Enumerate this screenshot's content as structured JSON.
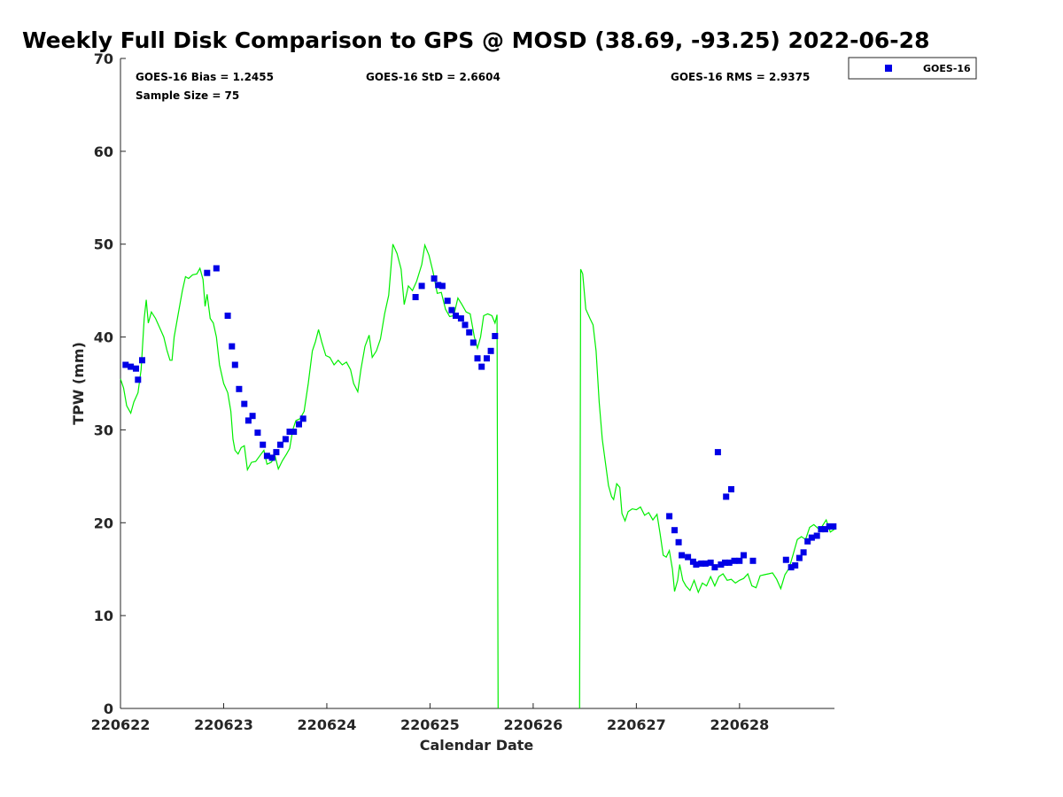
{
  "chart_data": {
    "type": "scatter",
    "title": "Weekly Full Disk Comparison to GPS @ MOSD (38.69, -93.25) 2022-06-28",
    "xlabel": "Calendar Date",
    "ylabel": "TPW (mm)",
    "xlim": [
      0,
      6.92
    ],
    "ylim": [
      0,
      70
    ],
    "x_unit": "days since 220622",
    "x_ticks": [
      {
        "value": 0,
        "label": "220622"
      },
      {
        "value": 1,
        "label": "220623"
      },
      {
        "value": 2,
        "label": "220624"
      },
      {
        "value": 3,
        "label": "220625"
      },
      {
        "value": 4,
        "label": "220626"
      },
      {
        "value": 5,
        "label": "220627"
      },
      {
        "value": 6,
        "label": "220628"
      }
    ],
    "y_ticks": [
      {
        "value": 0,
        "label": "0"
      },
      {
        "value": 10,
        "label": "10"
      },
      {
        "value": 20,
        "label": "20"
      },
      {
        "value": 30,
        "label": "30"
      },
      {
        "value": 40,
        "label": "40"
      },
      {
        "value": 50,
        "label": "50"
      },
      {
        "value": 60,
        "label": "60"
      },
      {
        "value": 70,
        "label": "70"
      }
    ],
    "stats": {
      "bias": "GOES-16 Bias = 1.2455",
      "std": "GOES-16 StD = 2.6604",
      "rms": "GOES-16 RMS = 2.9375",
      "sample_size": "Sample Size = 75"
    },
    "legend": {
      "position": "top-right, outside plot",
      "entries": [
        "GOES-16"
      ]
    },
    "grid": false,
    "series": [
      {
        "name": "GOES-16",
        "kind": "scatter",
        "marker": "square",
        "color": "#0000e6",
        "points": [
          [
            0.05,
            37.0
          ],
          [
            0.1,
            36.8
          ],
          [
            0.15,
            36.6
          ],
          [
            0.17,
            35.4
          ],
          [
            0.21,
            37.5
          ],
          [
            0.84,
            46.9
          ],
          [
            0.93,
            47.4
          ],
          [
            1.04,
            42.3
          ],
          [
            1.08,
            39.0
          ],
          [
            1.11,
            37.0
          ],
          [
            1.15,
            34.4
          ],
          [
            1.2,
            32.8
          ],
          [
            1.24,
            31.0
          ],
          [
            1.28,
            31.5
          ],
          [
            1.33,
            29.7
          ],
          [
            1.38,
            28.4
          ],
          [
            1.42,
            27.2
          ],
          [
            1.47,
            27.0
          ],
          [
            1.51,
            27.6
          ],
          [
            1.55,
            28.4
          ],
          [
            1.6,
            29.0
          ],
          [
            1.64,
            29.8
          ],
          [
            1.68,
            29.8
          ],
          [
            1.73,
            30.6
          ],
          [
            1.77,
            31.2
          ],
          [
            2.86,
            44.3
          ],
          [
            2.92,
            45.5
          ],
          [
            3.04,
            46.3
          ],
          [
            3.08,
            45.6
          ],
          [
            3.12,
            45.5
          ],
          [
            3.17,
            43.9
          ],
          [
            3.21,
            42.9
          ],
          [
            3.25,
            42.3
          ],
          [
            3.3,
            42.0
          ],
          [
            3.34,
            41.3
          ],
          [
            3.38,
            40.5
          ],
          [
            3.42,
            39.4
          ],
          [
            3.46,
            37.7
          ],
          [
            3.5,
            36.8
          ],
          [
            3.55,
            37.7
          ],
          [
            3.59,
            38.5
          ],
          [
            3.63,
            40.1
          ],
          [
            5.79,
            27.6
          ],
          [
            5.87,
            22.8
          ],
          [
            5.92,
            23.6
          ],
          [
            5.32,
            20.7
          ],
          [
            5.37,
            19.2
          ],
          [
            5.41,
            17.9
          ],
          [
            5.44,
            16.5
          ],
          [
            5.5,
            16.3
          ],
          [
            5.55,
            15.8
          ],
          [
            5.58,
            15.5
          ],
          [
            5.63,
            15.6
          ],
          [
            5.67,
            15.6
          ],
          [
            5.72,
            15.7
          ],
          [
            5.76,
            15.2
          ],
          [
            5.82,
            15.5
          ],
          [
            5.86,
            15.7
          ],
          [
            5.9,
            15.7
          ],
          [
            5.95,
            15.9
          ],
          [
            6.0,
            15.9
          ],
          [
            6.04,
            16.5
          ],
          [
            6.13,
            15.9
          ],
          [
            6.45,
            16.0
          ],
          [
            6.5,
            15.2
          ],
          [
            6.54,
            15.4
          ],
          [
            6.58,
            16.2
          ],
          [
            6.62,
            16.8
          ],
          [
            6.66,
            18.0
          ],
          [
            6.7,
            18.4
          ],
          [
            6.75,
            18.6
          ],
          [
            6.79,
            19.3
          ],
          [
            6.83,
            19.3
          ],
          [
            6.87,
            19.6
          ],
          [
            6.91,
            19.6
          ]
        ]
      },
      {
        "name": "GPS",
        "kind": "line",
        "color": "#00ee00",
        "points": [
          [
            0.0,
            35.5
          ],
          [
            0.03,
            34.5
          ],
          [
            0.06,
            32.6
          ],
          [
            0.1,
            31.8
          ],
          [
            0.13,
            33.0
          ],
          [
            0.17,
            34.0
          ],
          [
            0.2,
            36.5
          ],
          [
            0.23,
            42.0
          ],
          [
            0.25,
            44.0
          ],
          [
            0.27,
            41.5
          ],
          [
            0.3,
            42.7
          ],
          [
            0.34,
            42.0
          ],
          [
            0.38,
            41.0
          ],
          [
            0.42,
            40.0
          ],
          [
            0.45,
            38.6
          ],
          [
            0.48,
            37.5
          ],
          [
            0.5,
            37.5
          ],
          [
            0.52,
            40.0
          ],
          [
            0.56,
            42.5
          ],
          [
            0.6,
            45.0
          ],
          [
            0.63,
            46.5
          ],
          [
            0.66,
            46.3
          ],
          [
            0.7,
            46.7
          ],
          [
            0.74,
            46.8
          ],
          [
            0.77,
            47.4
          ],
          [
            0.8,
            46.2
          ],
          [
            0.82,
            43.3
          ],
          [
            0.84,
            44.6
          ],
          [
            0.87,
            42.0
          ],
          [
            0.9,
            41.5
          ],
          [
            0.93,
            40.0
          ],
          [
            0.96,
            37.0
          ],
          [
            1.0,
            35.0
          ],
          [
            1.04,
            34.0
          ],
          [
            1.07,
            32.0
          ],
          [
            1.09,
            29.0
          ],
          [
            1.11,
            27.8
          ],
          [
            1.14,
            27.4
          ],
          [
            1.17,
            28.1
          ],
          [
            1.2,
            28.3
          ],
          [
            1.23,
            25.7
          ],
          [
            1.27,
            26.5
          ],
          [
            1.31,
            26.6
          ],
          [
            1.35,
            27.2
          ],
          [
            1.39,
            27.8
          ],
          [
            1.42,
            26.3
          ],
          [
            1.46,
            26.5
          ],
          [
            1.5,
            27.1
          ],
          [
            1.53,
            25.8
          ],
          [
            1.57,
            26.7
          ],
          [
            1.61,
            27.4
          ],
          [
            1.64,
            28.0
          ],
          [
            1.67,
            30.0
          ],
          [
            1.7,
            31.0
          ],
          [
            1.74,
            31.2
          ],
          [
            1.78,
            32.0
          ],
          [
            1.82,
            35.0
          ],
          [
            1.86,
            38.5
          ],
          [
            1.89,
            39.5
          ],
          [
            1.92,
            40.8
          ],
          [
            1.95,
            39.5
          ],
          [
            1.99,
            38.0
          ],
          [
            2.03,
            37.8
          ],
          [
            2.07,
            37.0
          ],
          [
            2.11,
            37.5
          ],
          [
            2.15,
            37.0
          ],
          [
            2.19,
            37.3
          ],
          [
            2.23,
            36.5
          ],
          [
            2.26,
            35.0
          ],
          [
            2.3,
            34.1
          ],
          [
            2.33,
            36.5
          ],
          [
            2.37,
            39.0
          ],
          [
            2.41,
            40.2
          ],
          [
            2.44,
            37.8
          ],
          [
            2.48,
            38.5
          ],
          [
            2.52,
            39.8
          ],
          [
            2.56,
            42.5
          ],
          [
            2.6,
            44.5
          ],
          [
            2.64,
            50.0
          ],
          [
            2.68,
            49.0
          ],
          [
            2.72,
            47.3
          ],
          [
            2.75,
            43.5
          ],
          [
            2.79,
            45.5
          ],
          [
            2.83,
            45.0
          ],
          [
            2.87,
            46.0
          ],
          [
            2.92,
            47.8
          ],
          [
            2.95,
            49.9
          ],
          [
            2.99,
            48.8
          ],
          [
            3.03,
            47.0
          ],
          [
            3.07,
            44.7
          ],
          [
            3.11,
            44.8
          ],
          [
            3.15,
            43.0
          ],
          [
            3.19,
            42.2
          ],
          [
            3.23,
            42.3
          ],
          [
            3.27,
            44.2
          ],
          [
            3.31,
            43.5
          ],
          [
            3.35,
            42.7
          ],
          [
            3.39,
            42.5
          ],
          [
            3.43,
            40.0
          ],
          [
            3.46,
            38.8
          ],
          [
            3.49,
            40.0
          ],
          [
            3.52,
            42.3
          ],
          [
            3.56,
            42.5
          ],
          [
            3.6,
            42.3
          ],
          [
            3.63,
            41.5
          ],
          [
            3.65,
            42.4
          ],
          [
            3.66,
            0.0
          ]
        ]
      },
      {
        "name": "GPS",
        "kind": "line",
        "color": "#00ee00",
        "points": [
          [
            4.45,
            0.0
          ],
          [
            4.46,
            47.3
          ],
          [
            4.48,
            46.8
          ],
          [
            4.51,
            43.0
          ],
          [
            4.55,
            42.0
          ],
          [
            4.58,
            41.3
          ],
          [
            4.61,
            38.5
          ],
          [
            4.64,
            33.0
          ],
          [
            4.67,
            29.0
          ],
          [
            4.7,
            26.5
          ],
          [
            4.73,
            24.0
          ],
          [
            4.76,
            22.8
          ],
          [
            4.78,
            22.5
          ],
          [
            4.81,
            24.2
          ],
          [
            4.84,
            23.8
          ],
          [
            4.86,
            21.0
          ],
          [
            4.89,
            20.2
          ],
          [
            4.92,
            21.2
          ],
          [
            4.96,
            21.5
          ],
          [
            5.0,
            21.4
          ],
          [
            5.04,
            21.7
          ],
          [
            5.08,
            20.8
          ],
          [
            5.12,
            21.1
          ],
          [
            5.16,
            20.3
          ],
          [
            5.2,
            20.9
          ],
          [
            5.23,
            18.8
          ],
          [
            5.26,
            16.5
          ],
          [
            5.29,
            16.3
          ],
          [
            5.32,
            17.0
          ],
          [
            5.35,
            15.0
          ],
          [
            5.37,
            12.6
          ],
          [
            5.4,
            13.8
          ],
          [
            5.42,
            15.5
          ],
          [
            5.45,
            13.8
          ],
          [
            5.48,
            13.2
          ],
          [
            5.52,
            12.7
          ],
          [
            5.56,
            13.8
          ],
          [
            5.6,
            12.5
          ],
          [
            5.64,
            13.5
          ],
          [
            5.68,
            13.2
          ],
          [
            5.72,
            14.2
          ],
          [
            5.76,
            13.2
          ],
          [
            5.8,
            14.2
          ],
          [
            5.84,
            14.5
          ],
          [
            5.88,
            13.8
          ],
          [
            5.92,
            13.9
          ],
          [
            5.96,
            13.5
          ],
          [
            6.0,
            13.8
          ],
          [
            6.04,
            14.0
          ],
          [
            6.08,
            14.5
          ],
          [
            6.12,
            13.2
          ],
          [
            6.16,
            13.0
          ],
          [
            6.2,
            14.3
          ],
          [
            6.24,
            14.4
          ],
          [
            6.28,
            14.5
          ],
          [
            6.32,
            14.6
          ],
          [
            6.36,
            13.9
          ],
          [
            6.4,
            12.9
          ],
          [
            6.44,
            14.4
          ],
          [
            6.48,
            15.1
          ],
          [
            6.52,
            16.6
          ],
          [
            6.56,
            18.2
          ],
          [
            6.6,
            18.5
          ],
          [
            6.64,
            18.2
          ],
          [
            6.68,
            19.5
          ],
          [
            6.72,
            19.8
          ],
          [
            6.76,
            19.4
          ],
          [
            6.8,
            19.6
          ],
          [
            6.84,
            20.3
          ],
          [
            6.88,
            19.0
          ],
          [
            6.92,
            19.3
          ]
        ]
      }
    ]
  }
}
